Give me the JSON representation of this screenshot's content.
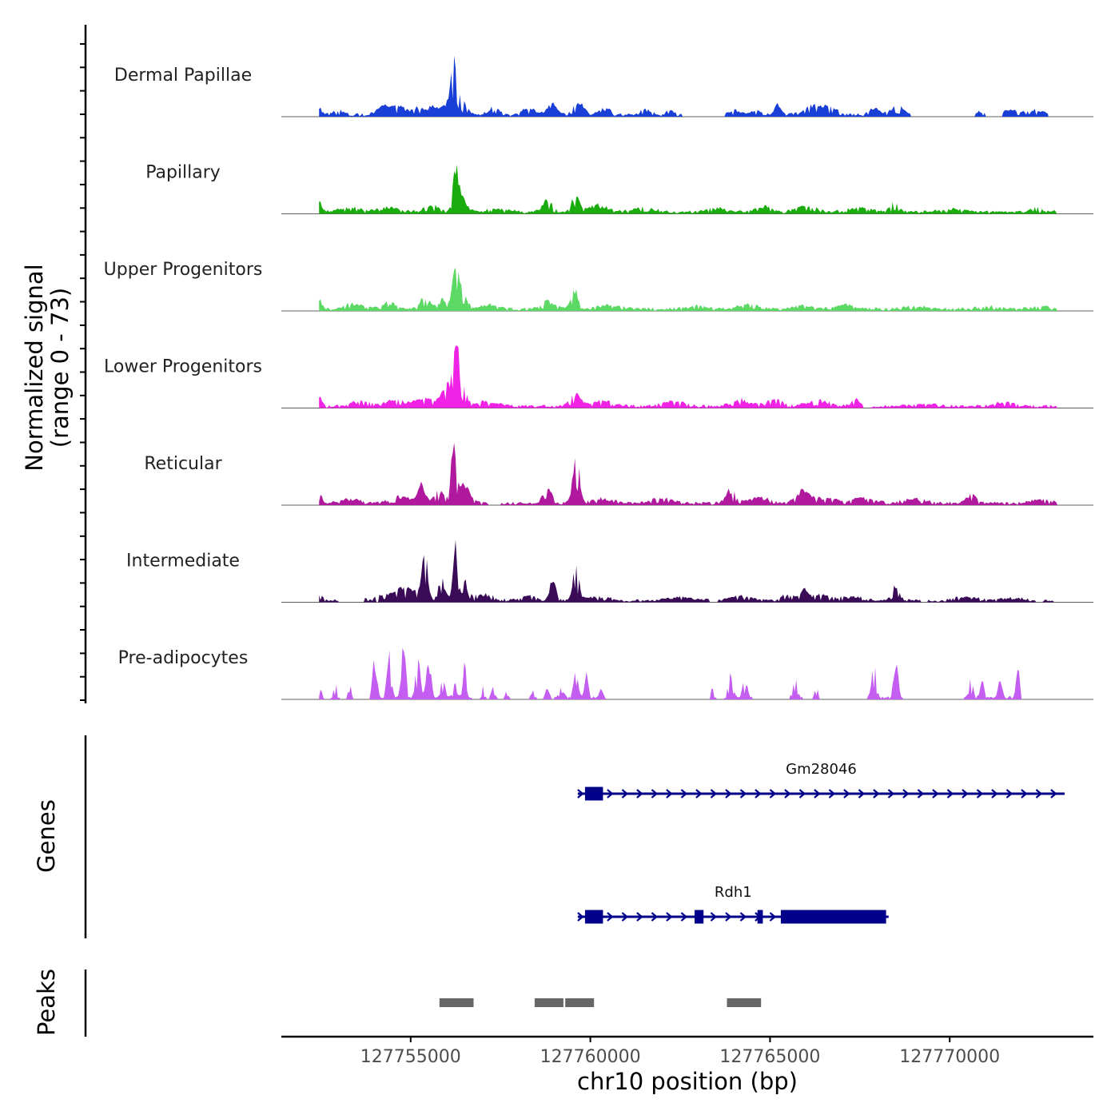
{
  "chart_data": {
    "type": "area",
    "title": "",
    "xlabel": "chr10 position (bp)",
    "ylabel_line1": "Normalized signal",
    "ylabel_line2": "(range 0 - 73)",
    "ylim": [
      0,
      73
    ],
    "xlim": [
      127751400,
      127774000
    ],
    "x_ticks": [
      127755000,
      127760000,
      127765000,
      127770000
    ],
    "x_tick_labels": [
      "127755000",
      "127760000",
      "127765000",
      "127770000"
    ],
    "signal_start": 127752450,
    "signal_end_default": 127773000,
    "tracks": [
      {
        "name": "Dermal Papillae",
        "color": "#1a3fd6",
        "end": 127772750,
        "bumps": [
          [
            127752450,
            9,
            70
          ],
          [
            127753000,
            6,
            150
          ],
          [
            127754200,
            12,
            150
          ],
          [
            127754600,
            14,
            200
          ],
          [
            127755200,
            9,
            180
          ],
          [
            127755650,
            12,
            150
          ],
          [
            127756050,
            16,
            140
          ],
          [
            127756200,
            62,
            80
          ],
          [
            127756400,
            22,
            160
          ],
          [
            127757300,
            10,
            150
          ],
          [
            127758300,
            10,
            180
          ],
          [
            127758950,
            17,
            130
          ],
          [
            127759650,
            16,
            160
          ],
          [
            127760400,
            8,
            180
          ],
          [
            127761500,
            8,
            150
          ],
          [
            127762200,
            6,
            150
          ],
          [
            127764000,
            6,
            150
          ],
          [
            127764600,
            6,
            150
          ],
          [
            127765200,
            18,
            80
          ],
          [
            127766200,
            12,
            250
          ],
          [
            127766700,
            10,
            200
          ],
          [
            127767900,
            8,
            180
          ],
          [
            127768550,
            12,
            180
          ],
          [
            127770850,
            5,
            80
          ],
          [
            127771600,
            6,
            250
          ],
          [
            127772300,
            6,
            300
          ]
        ],
        "gaps": [
          [
            127762550,
            127763750
          ],
          [
            127768900,
            127770700
          ],
          [
            127771000,
            127771450
          ]
        ]
      },
      {
        "name": "Papillary",
        "color": "#1aab0e",
        "end": 127773000,
        "bumps": [
          [
            127752450,
            14,
            70
          ],
          [
            127753300,
            6,
            300
          ],
          [
            127754400,
            6,
            300
          ],
          [
            127755600,
            9,
            220
          ],
          [
            127756250,
            55,
            70
          ],
          [
            127756400,
            20,
            150
          ],
          [
            127757400,
            4,
            300
          ],
          [
            127758800,
            16,
            130
          ],
          [
            127759600,
            25,
            100
          ],
          [
            127760200,
            9,
            250
          ],
          [
            127761500,
            6,
            300
          ],
          [
            127763500,
            5,
            300
          ],
          [
            127764800,
            9,
            180
          ],
          [
            127766000,
            10,
            250
          ],
          [
            127767500,
            6,
            300
          ],
          [
            127768450,
            12,
            120
          ],
          [
            127770000,
            4,
            300
          ],
          [
            127772400,
            6,
            120
          ]
        ],
        "gaps": []
      },
      {
        "name": "Upper Progenitors",
        "color": "#5cd965",
        "end": 127773000,
        "bumps": [
          [
            127752450,
            13,
            70
          ],
          [
            127753400,
            7,
            250
          ],
          [
            127754400,
            10,
            200
          ],
          [
            127755400,
            18,
            120
          ],
          [
            127755900,
            14,
            150
          ],
          [
            127756250,
            70,
            75
          ],
          [
            127756400,
            25,
            150
          ],
          [
            127757200,
            6,
            250
          ],
          [
            127758800,
            10,
            200
          ],
          [
            127759550,
            28,
            100
          ],
          [
            127760500,
            6,
            300
          ],
          [
            127763000,
            5,
            300
          ],
          [
            127764400,
            7,
            250
          ],
          [
            127765900,
            6,
            250
          ],
          [
            127767100,
            6,
            250
          ],
          [
            127769000,
            4,
            300
          ],
          [
            127771000,
            4,
            300
          ],
          [
            127772500,
            3,
            300
          ]
        ],
        "gaps": []
      },
      {
        "name": "Lower Progenitors",
        "color": "#f022e6",
        "end": 127773000,
        "bumps": [
          [
            127752450,
            15,
            70
          ],
          [
            127753600,
            7,
            250
          ],
          [
            127754600,
            10,
            250
          ],
          [
            127755400,
            14,
            220
          ],
          [
            127756000,
            28,
            150
          ],
          [
            127756250,
            82,
            70
          ],
          [
            127756400,
            30,
            130
          ],
          [
            127757100,
            6,
            300
          ],
          [
            127759600,
            16,
            150
          ],
          [
            127760300,
            7,
            300
          ],
          [
            127762300,
            6,
            300
          ],
          [
            127764200,
            9,
            250
          ],
          [
            127765100,
            10,
            200
          ],
          [
            127766300,
            8,
            300
          ],
          [
            127767400,
            9,
            120
          ],
          [
            127769300,
            4,
            300
          ],
          [
            127771500,
            5,
            300
          ]
        ],
        "gaps": [
          [
            127767600,
            127767800
          ]
        ]
      },
      {
        "name": "Reticular",
        "color": "#b0199e",
        "end": 127773000,
        "bumps": [
          [
            127752450,
            12,
            80
          ],
          [
            127753300,
            6,
            250
          ],
          [
            127754700,
            10,
            300
          ],
          [
            127755300,
            30,
            90
          ],
          [
            127755800,
            18,
            150
          ],
          [
            127756200,
            75,
            80
          ],
          [
            127756450,
            25,
            180
          ],
          [
            127758800,
            27,
            110
          ],
          [
            127759600,
            72,
            90
          ],
          [
            127760300,
            6,
            300
          ],
          [
            127762000,
            8,
            250
          ],
          [
            127763900,
            18,
            140
          ],
          [
            127764700,
            8,
            300
          ],
          [
            127765900,
            16,
            200
          ],
          [
            127766500,
            8,
            300
          ],
          [
            127767600,
            8,
            300
          ],
          [
            127769000,
            6,
            300
          ],
          [
            127770600,
            11,
            150
          ],
          [
            127772500,
            4,
            300
          ]
        ],
        "gaps": [
          [
            127757200,
            127757500
          ]
        ]
      },
      {
        "name": "Intermediate",
        "color": "#3a0c58",
        "end": 127772900,
        "bumps": [
          [
            127752450,
            8,
            80
          ],
          [
            127753500,
            4,
            200
          ],
          [
            127754300,
            10,
            200
          ],
          [
            127754700,
            14,
            150
          ],
          [
            127755100,
            18,
            200
          ],
          [
            127755400,
            65,
            70
          ],
          [
            127755850,
            30,
            100
          ],
          [
            127756250,
            85,
            70
          ],
          [
            127756550,
            40,
            60
          ],
          [
            127757000,
            8,
            300
          ],
          [
            127758300,
            8,
            200
          ],
          [
            127758950,
            36,
            80
          ],
          [
            127759600,
            48,
            80
          ],
          [
            127760200,
            5,
            300
          ],
          [
            127762500,
            5,
            300
          ],
          [
            127764100,
            6,
            300
          ],
          [
            127765500,
            10,
            150
          ],
          [
            127765950,
            14,
            120
          ],
          [
            127766400,
            7,
            300
          ],
          [
            127767300,
            5,
            300
          ],
          [
            127768500,
            20,
            100
          ],
          [
            127770400,
            5,
            300
          ],
          [
            127771800,
            3,
            300
          ]
        ],
        "gaps": [
          [
            127753000,
            127753700
          ],
          [
            127754050,
            127754100
          ],
          [
            127763300,
            127763550
          ],
          [
            127769200,
            127769400
          ],
          [
            127772400,
            127772600
          ]
        ]
      },
      {
        "name": "Pre-adipocytes",
        "color": "#c45ef2",
        "end": 127772000,
        "bumps": [
          [
            127752500,
            11,
            40
          ],
          [
            127752900,
            18,
            40
          ],
          [
            127753300,
            22,
            40
          ],
          [
            127754000,
            55,
            60
          ],
          [
            127754400,
            60,
            60
          ],
          [
            127754800,
            75,
            60
          ],
          [
            127755200,
            60,
            60
          ],
          [
            127755500,
            55,
            60
          ],
          [
            127755900,
            25,
            60
          ],
          [
            127756250,
            28,
            60
          ],
          [
            127756500,
            58,
            40
          ],
          [
            127757000,
            14,
            40
          ],
          [
            127757300,
            22,
            40
          ],
          [
            127757700,
            14,
            40
          ],
          [
            127758400,
            10,
            40
          ],
          [
            127758800,
            14,
            40
          ],
          [
            127759200,
            20,
            50
          ],
          [
            127759600,
            48,
            60
          ],
          [
            127759900,
            38,
            50
          ],
          [
            127760300,
            12,
            40
          ],
          [
            127763400,
            12,
            40
          ],
          [
            127763900,
            34,
            60
          ],
          [
            127764300,
            28,
            60
          ],
          [
            127765700,
            30,
            60
          ],
          [
            127766300,
            13,
            40
          ],
          [
            127767900,
            48,
            60
          ],
          [
            127768500,
            48,
            60
          ],
          [
            127770600,
            24,
            50
          ],
          [
            127770900,
            28,
            50
          ],
          [
            127771400,
            32,
            50
          ],
          [
            127771900,
            38,
            50
          ]
        ],
        "gaps": [
          [
            127752650,
            127752750
          ],
          [
            127753050,
            127753200
          ],
          [
            127753400,
            127753850
          ],
          [
            127756700,
            127756900
          ],
          [
            127757100,
            127757200
          ],
          [
            127757450,
            127757600
          ],
          [
            127757800,
            127758250
          ],
          [
            127758500,
            127758650
          ],
          [
            127758900,
            127759000
          ],
          [
            127760450,
            127763300
          ],
          [
            127763500,
            127763700
          ],
          [
            127764500,
            127765550
          ],
          [
            127765900,
            127766200
          ],
          [
            127766400,
            127767700
          ],
          [
            127768700,
            127770400
          ],
          [
            127772000,
            127773000
          ]
        ]
      }
    ],
    "genes_label": "Genes",
    "genes": [
      {
        "name": "Gm28046",
        "strand": "+",
        "start": 127759650,
        "end": 127773200,
        "exons": [
          [
            127759850,
            127760350
          ]
        ]
      },
      {
        "name": "Rdh1",
        "strand": "+",
        "start": 127759650,
        "end": 127768300,
        "exons": [
          [
            127759850,
            127760350
          ],
          [
            127762900,
            127763150
          ],
          [
            127764650,
            127764800
          ],
          [
            127765300,
            127768230
          ]
        ]
      }
    ],
    "peaks_label": "Peaks",
    "peaks": [
      [
        127755800,
        127756750
      ],
      [
        127758450,
        127759250
      ],
      [
        127759300,
        127760100
      ],
      [
        127763800,
        127764750
      ]
    ]
  }
}
